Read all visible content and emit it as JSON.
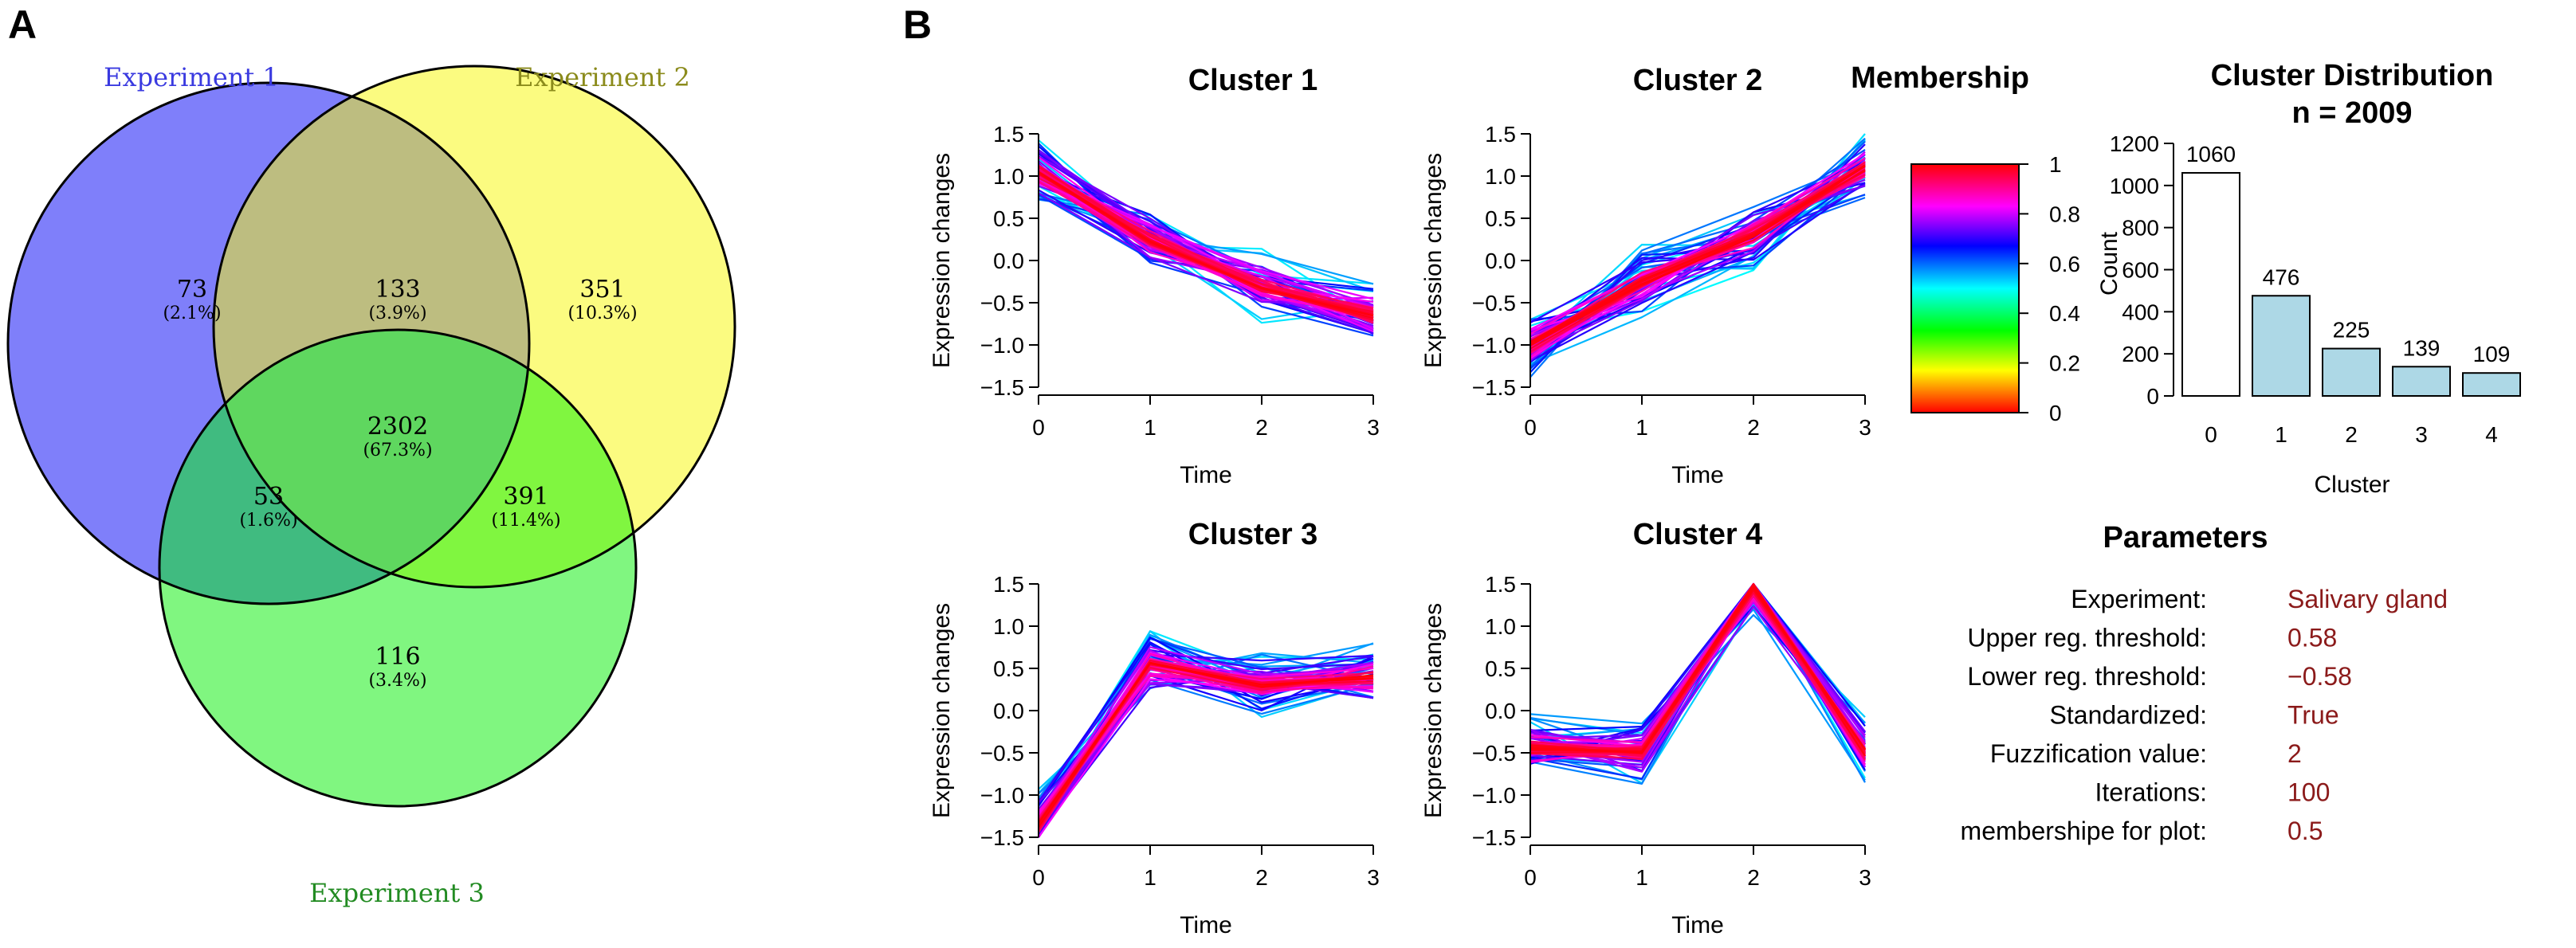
{
  "panels": {
    "a_label": "A",
    "b_label": "B"
  },
  "venn": {
    "sets": [
      {
        "name": "Experiment 1",
        "label_color": "#3a3ae0",
        "fill": "#7f7ffa"
      },
      {
        "name": "Experiment 2",
        "label_color": "#8b8b1c",
        "fill": "#fbfb80"
      },
      {
        "name": "Experiment 3",
        "label_color": "#228b22",
        "fill": "#80f680"
      }
    ],
    "regions": [
      {
        "key": "only1",
        "count": "73",
        "pct": "(2.1%)",
        "fill": "#7f7ffa"
      },
      {
        "key": "only2",
        "count": "351",
        "pct": "(10.3%)",
        "fill": "#fbfb80"
      },
      {
        "key": "only3",
        "count": "116",
        "pct": "(3.4%)",
        "fill": "#80f680"
      },
      {
        "key": "s12",
        "count": "133",
        "pct": "(3.9%)",
        "fill": "#bdbd80"
      },
      {
        "key": "s13",
        "count": "53",
        "pct": "(1.6%)",
        "fill": "#40bb80"
      },
      {
        "key": "s23",
        "count": "391",
        "pct": "(11.4%)",
        "fill": "#80f640"
      },
      {
        "key": "s123",
        "count": "2302",
        "pct": "(67.3%)",
        "fill": "#5fd75f"
      }
    ]
  },
  "clusters": {
    "x_ticks": [
      "0",
      "1",
      "2",
      "3"
    ],
    "y_ticks": [
      "-1.5",
      "-1.0",
      "-0.5",
      "0.0",
      "0.5",
      "1.0",
      "1.5"
    ],
    "xlabel": "Time",
    "ylabel": "Expression changes",
    "items": [
      {
        "title": "Cluster 1",
        "profile": [
          1.05,
          0.25,
          -0.3,
          -0.65
        ]
      },
      {
        "title": "Cluster 2",
        "profile": [
          -1.0,
          -0.25,
          0.3,
          1.1
        ]
      },
      {
        "title": "Cluster 3",
        "profile": [
          -1.35,
          0.55,
          0.3,
          0.4
        ]
      },
      {
        "title": "Cluster 4",
        "profile": [
          -0.45,
          -0.5,
          1.45,
          -0.5
        ]
      }
    ]
  },
  "membership": {
    "title": "Membership",
    "ticks": [
      "0",
      "0.2",
      "0.4",
      "0.6",
      "0.8",
      "1"
    ]
  },
  "chart_data": {
    "type": "bar",
    "title": "Cluster Distribution",
    "subtitle": "n = 2009",
    "xlabel": "Cluster",
    "ylabel": "Count",
    "categories": [
      "0",
      "1",
      "2",
      "3",
      "4"
    ],
    "values": [
      1060,
      476,
      225,
      139,
      109
    ],
    "value_labels": [
      "1060",
      "476",
      "225",
      "139",
      "109"
    ],
    "y_ticks": [
      "0",
      "200",
      "400",
      "600",
      "800",
      "1000",
      "1200"
    ],
    "ylim": [
      0,
      1200
    ],
    "colors": [
      "#ffffff",
      "#add8e6",
      "#add8e6",
      "#add8e6",
      "#add8e6"
    ]
  },
  "parameters": {
    "title": "Parameters",
    "rows": [
      {
        "label": "Experiment:",
        "value": "Salivary  gland"
      },
      {
        "label": "Upper reg. threshold:",
        "value": "0.58"
      },
      {
        "label": "Lower reg. threshold:",
        "value": "−0.58"
      },
      {
        "label": "Standardized:",
        "value": "True"
      },
      {
        "label": "Fuzzification  value:",
        "value": "2"
      },
      {
        "label": "Iterations:",
        "value": "100"
      },
      {
        "label": "membershipe for plot:",
        "value": "0.5"
      }
    ]
  }
}
